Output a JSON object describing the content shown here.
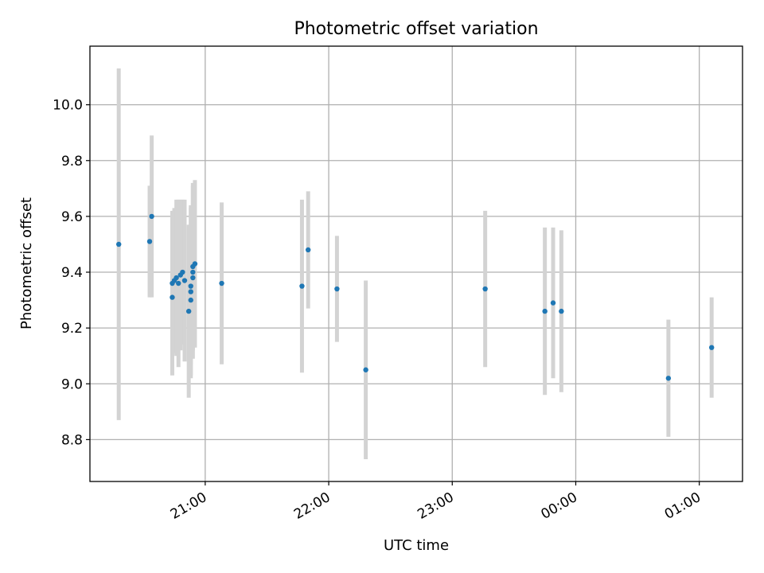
{
  "chart_data": {
    "type": "scatter",
    "title": "Photometric offset variation",
    "xlabel": "UTC time",
    "ylabel": "Photometric offset",
    "grid": true,
    "marker_color": "#1f77b4",
    "errorbar_color": "#d3d3d3",
    "xlim": [
      "20:04",
      "01:21"
    ],
    "ylim": [
      8.65,
      10.21
    ],
    "x_ticks": [
      "21:00",
      "22:00",
      "23:00",
      "00:00",
      "01:00"
    ],
    "y_ticks": [
      "8.8",
      "9.0",
      "9.2",
      "9.4",
      "9.6",
      "9.8",
      "10.0"
    ],
    "series": [
      {
        "points": [
          {
            "x": "20:18",
            "y": 9.5,
            "err": 0.63
          },
          {
            "x": "20:33",
            "y": 9.51,
            "err": 0.2
          },
          {
            "x": "20:34",
            "y": 9.6,
            "err": 0.29
          },
          {
            "x": "20:44",
            "y": 9.31,
            "err": 0.28
          },
          {
            "x": "20:44",
            "y": 9.36,
            "err": 0.26
          },
          {
            "x": "20:45",
            "y": 9.37,
            "err": 0.26
          },
          {
            "x": "20:46",
            "y": 9.38,
            "err": 0.28
          },
          {
            "x": "20:47",
            "y": 9.36,
            "err": 0.3
          },
          {
            "x": "20:48",
            "y": 9.39,
            "err": 0.27
          },
          {
            "x": "20:49",
            "y": 9.4,
            "err": 0.26
          },
          {
            "x": "20:50",
            "y": 9.37,
            "err": 0.29
          },
          {
            "x": "20:52",
            "y": 9.26,
            "err": 0.31
          },
          {
            "x": "20:53",
            "y": 9.3,
            "err": 0.27
          },
          {
            "x": "20:53",
            "y": 9.33,
            "err": 0.31
          },
          {
            "x": "20:53",
            "y": 9.35,
            "err": 0.28
          },
          {
            "x": "20:54",
            "y": 9.4,
            "err": 0.31
          },
          {
            "x": "20:54",
            "y": 9.38,
            "err": 0.26
          },
          {
            "x": "20:54",
            "y": 9.42,
            "err": 0.3
          },
          {
            "x": "20:55",
            "y": 9.43,
            "err": 0.3
          },
          {
            "x": "21:08",
            "y": 9.36,
            "err": 0.29
          },
          {
            "x": "21:47",
            "y": 9.35,
            "err": 0.31
          },
          {
            "x": "21:50",
            "y": 9.48,
            "err": 0.21
          },
          {
            "x": "22:04",
            "y": 9.34,
            "err": 0.19
          },
          {
            "x": "22:18",
            "y": 9.05,
            "err": 0.32
          },
          {
            "x": "23:16",
            "y": 9.34,
            "err": 0.28
          },
          {
            "x": "23:45",
            "y": 9.26,
            "err": 0.3
          },
          {
            "x": "23:49",
            "y": 9.29,
            "err": 0.27
          },
          {
            "x": "23:53",
            "y": 9.26,
            "err": 0.29
          },
          {
            "x": "00:45",
            "y": 9.02,
            "err": 0.21
          },
          {
            "x": "01:06",
            "y": 9.13,
            "err": 0.18
          }
        ]
      }
    ]
  }
}
